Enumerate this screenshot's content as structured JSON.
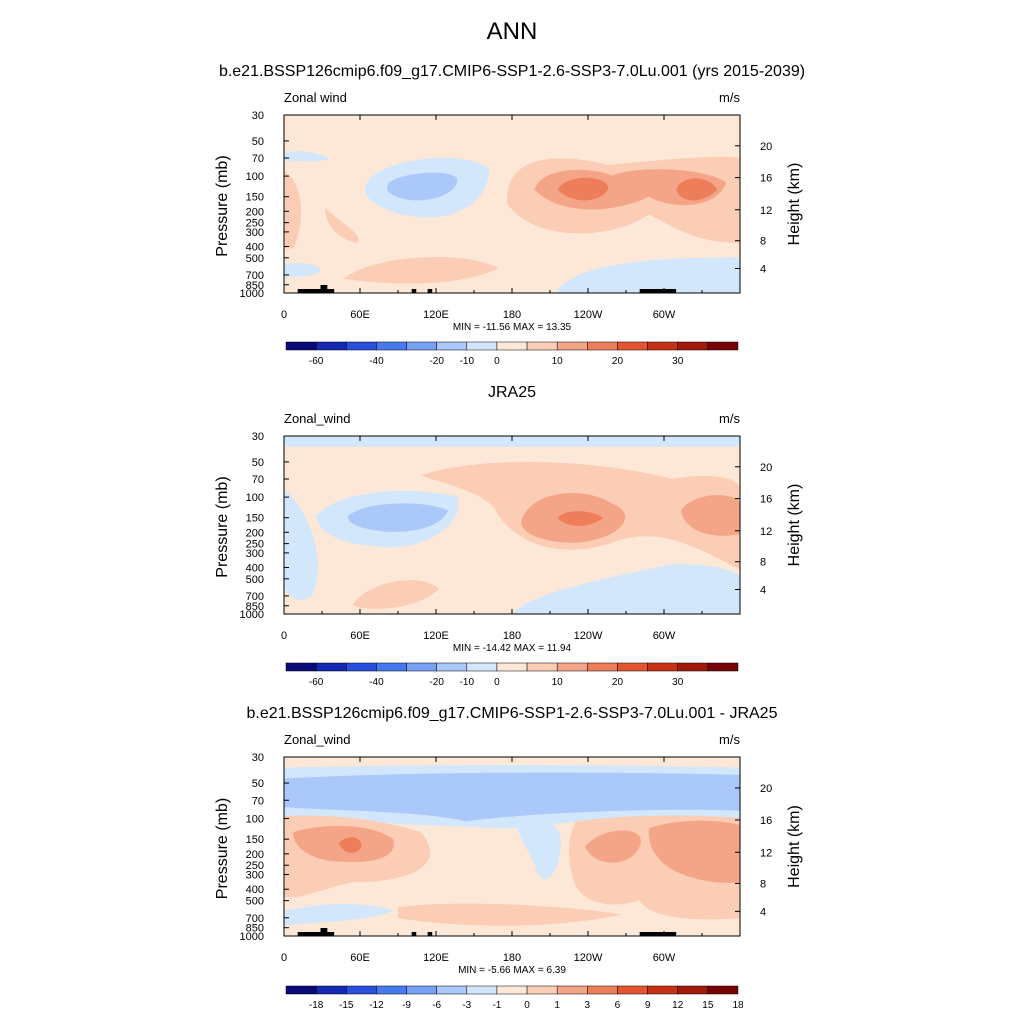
{
  "figure_title": "ANN",
  "chart_data": [
    {
      "type": "heatmap",
      "title": "b.e21.BSSP126cmip6.f09_g17.CMIP6-SSP1-2.6-SSP3-7.0Lu.001 (yrs 2015-2039)",
      "variable": "Zonal wind",
      "units": "m/s",
      "xlabel": "",
      "ylabel": "Pressure (mb)",
      "ylabel_right": "Height (km)",
      "x_ticks": [
        "0",
        "60E",
        "120E",
        "180",
        "120W",
        "60W"
      ],
      "y_ticks": [
        "30",
        "50",
        "70",
        "100",
        "150",
        "200",
        "250",
        "300",
        "400",
        "500",
        "700",
        "850",
        "1000"
      ],
      "height_ticks": [
        "20",
        "16",
        "12",
        "8",
        "4"
      ],
      "stats": "MIN = -11.56  MAX =  13.35",
      "min": -11.56,
      "max": 13.35,
      "colorbar_labels": [
        "-60",
        "-40",
        "-20",
        "-10",
        "0",
        "10",
        "20",
        "30"
      ],
      "colorbar_colors": [
        "#0a0a78",
        "#1428b4",
        "#2850dc",
        "#4678f0",
        "#78a0f5",
        "#aac8fa",
        "#d2e6fc",
        "#fde8d8",
        "#fbcdb4",
        "#f5a587",
        "#ee7d5a",
        "#e25530",
        "#c83214",
        "#a0190a",
        "#780505"
      ],
      "features": [
        {
          "lon": 105,
          "p": 140,
          "value": -10
        },
        {
          "lon": 245,
          "p": 150,
          "value": 13
        },
        {
          "lon": 325,
          "p": 150,
          "value": 12
        }
      ]
    },
    {
      "type": "heatmap",
      "title": "JRA25",
      "variable": "Zonal_wind",
      "units": "m/s",
      "xlabel": "",
      "ylabel": "Pressure (mb)",
      "ylabel_right": "Height (km)",
      "x_ticks": [
        "0",
        "60E",
        "120E",
        "180",
        "120W",
        "60W"
      ],
      "y_ticks": [
        "30",
        "50",
        "70",
        "100",
        "150",
        "200",
        "250",
        "300",
        "400",
        "500",
        "700",
        "850",
        "1000"
      ],
      "height_ticks": [
        "20",
        "16",
        "12",
        "8",
        "4"
      ],
      "stats": "MIN = -14.42  MAX =  11.94",
      "min": -14.42,
      "max": 11.94,
      "colorbar_labels": [
        "-60",
        "-40",
        "-20",
        "-10",
        "0",
        "10",
        "20",
        "30"
      ],
      "colorbar_colors": [
        "#0a0a78",
        "#1428b4",
        "#2850dc",
        "#4678f0",
        "#78a0f5",
        "#aac8fa",
        "#d2e6fc",
        "#fde8d8",
        "#fbcdb4",
        "#f5a587",
        "#ee7d5a",
        "#e25530",
        "#c83214",
        "#a0190a",
        "#780505"
      ],
      "features": [
        {
          "lon": 85,
          "p": 170,
          "value": -14
        },
        {
          "lon": 235,
          "p": 150,
          "value": 12
        },
        {
          "lon": 315,
          "p": 150,
          "value": 8
        }
      ]
    },
    {
      "type": "heatmap",
      "title": "b.e21.BSSP126cmip6.f09_g17.CMIP6-SSP1-2.6-SSP3-7.0Lu.001 - JRA25",
      "variable": "Zonal_wind",
      "units": "m/s",
      "xlabel": "",
      "ylabel": "Pressure (mb)",
      "ylabel_right": "Height (km)",
      "x_ticks": [
        "0",
        "60E",
        "120E",
        "180",
        "120W",
        "60W"
      ],
      "y_ticks": [
        "30",
        "50",
        "70",
        "100",
        "150",
        "200",
        "250",
        "300",
        "400",
        "500",
        "700",
        "850",
        "1000"
      ],
      "height_ticks": [
        "20",
        "16",
        "12",
        "8",
        "4"
      ],
      "stats": "MIN = -5.66  MAX =  6.39",
      "min": -5.66,
      "max": 6.39,
      "colorbar_labels": [
        "-18",
        "-15",
        "-12",
        "-9",
        "-6",
        "-3",
        "-1",
        "0",
        "1",
        "3",
        "6",
        "9",
        "12",
        "15",
        "18"
      ],
      "colorbar_colors": [
        "#0a0a78",
        "#1428b4",
        "#2850dc",
        "#4678f0",
        "#78a0f5",
        "#aac8fa",
        "#d2e6fc",
        "#fde8d8",
        "#fbcdb4",
        "#f5a587",
        "#ee7d5a",
        "#e25530",
        "#c83214",
        "#a0190a",
        "#780505"
      ],
      "features": [
        {
          "lon": 50,
          "p": 180,
          "value": 6
        },
        {
          "lon": 150,
          "p": 60,
          "value": -4
        },
        {
          "lon": 300,
          "p": 200,
          "value": 4
        }
      ]
    }
  ]
}
